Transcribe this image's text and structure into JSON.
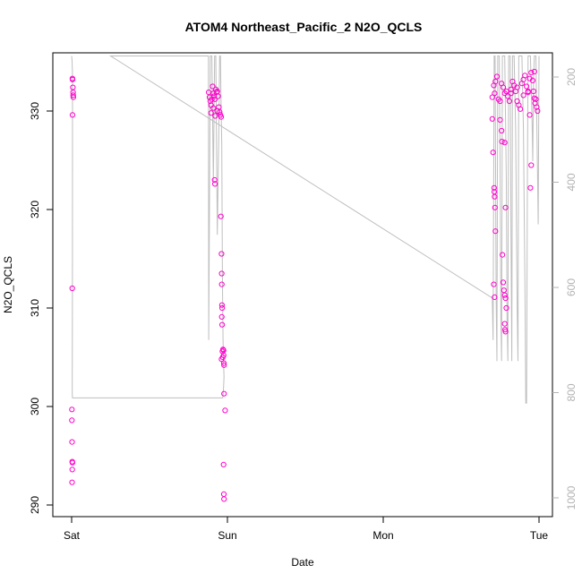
{
  "chart_data": {
    "type": "scatter",
    "title": "ATOM4 Northeast_Pacific_2 N2O_QCLS",
    "xlabel": "Date",
    "ylabel": "N2O_QCLS",
    "x_unit": "days",
    "xlim": [
      -0.05,
      3.05
    ],
    "ylim": [
      289,
      335.5
    ],
    "x_ticks": [
      {
        "value": 0,
        "label": "Sat"
      },
      {
        "value": 1,
        "label": "Sun"
      },
      {
        "value": 2,
        "label": "Mon"
      },
      {
        "value": 3,
        "label": "Tue"
      }
    ],
    "y_ticks": [
      290,
      300,
      310,
      320,
      330
    ],
    "y2_ticks": [
      200,
      400,
      600,
      800,
      1000
    ],
    "y2lim_reversed": [
      160,
      1015
    ],
    "point_color": "#ff00cc",
    "line_color": "#bfbfbf",
    "right_axis_color": "#b3b3b3",
    "series": [
      {
        "kind": "points",
        "points": [
          [
            0.005,
            333.3
          ],
          [
            0.006,
            333.2
          ],
          [
            0.008,
            332.4
          ],
          [
            0.009,
            331.9
          ],
          [
            0.01,
            331.6
          ],
          [
            0.011,
            331.4
          ],
          [
            0.006,
            329.6
          ],
          [
            0.004,
            312.0
          ],
          [
            0.002,
            299.7
          ],
          [
            0.002,
            298.6
          ],
          [
            0.003,
            296.4
          ],
          [
            0.004,
            294.4
          ],
          [
            0.005,
            294.3
          ],
          [
            0.004,
            293.6
          ],
          [
            0.003,
            292.3
          ],
          [
            0.88,
            331.9
          ],
          [
            0.885,
            331.4
          ],
          [
            0.89,
            331.0
          ],
          [
            0.895,
            330.6
          ],
          [
            0.9,
            331.2
          ],
          [
            0.905,
            332.5
          ],
          [
            0.91,
            331.8
          ],
          [
            0.915,
            331.5
          ],
          [
            0.92,
            331.2
          ],
          [
            0.925,
            332.2
          ],
          [
            0.93,
            331.9
          ],
          [
            0.935,
            332.0
          ],
          [
            0.94,
            331.5
          ],
          [
            0.945,
            330.4
          ],
          [
            0.95,
            329.9
          ],
          [
            0.955,
            329.6
          ],
          [
            0.96,
            329.4
          ],
          [
            0.935,
            330.0
          ],
          [
            0.895,
            329.8
          ],
          [
            0.91,
            330.3
          ],
          [
            0.922,
            329.5
          ],
          [
            0.918,
            323.0
          ],
          [
            0.92,
            322.6
          ],
          [
            0.958,
            319.3
          ],
          [
            0.962,
            315.5
          ],
          [
            0.963,
            313.5
          ],
          [
            0.964,
            312.4
          ],
          [
            0.965,
            310.3
          ],
          [
            0.966,
            310.0
          ],
          [
            0.964,
            309.1
          ],
          [
            0.966,
            308.3
          ],
          [
            0.968,
            305.6
          ],
          [
            0.97,
            305.0
          ],
          [
            0.972,
            305.8
          ],
          [
            0.975,
            305.7
          ],
          [
            0.976,
            305.2
          ],
          [
            0.977,
            304.4
          ],
          [
            0.978,
            304.2
          ],
          [
            0.962,
            304.8
          ],
          [
            0.978,
            301.3
          ],
          [
            0.985,
            299.6
          ],
          [
            0.975,
            294.1
          ],
          [
            0.977,
            291.1
          ],
          [
            0.978,
            290.6
          ],
          [
            2.7,
            331.4
          ],
          [
            2.71,
            332.6
          ],
          [
            2.715,
            331.8
          ],
          [
            2.72,
            333.0
          ],
          [
            2.73,
            333.5
          ],
          [
            2.74,
            331.2
          ],
          [
            2.75,
            331.0
          ],
          [
            2.76,
            332.8
          ],
          [
            2.77,
            332.4
          ],
          [
            2.78,
            331.8
          ],
          [
            2.79,
            332.0
          ],
          [
            2.8,
            331.5
          ],
          [
            2.81,
            331.0
          ],
          [
            2.82,
            332.2
          ],
          [
            2.83,
            333.0
          ],
          [
            2.84,
            332.6
          ],
          [
            2.85,
            332.0
          ],
          [
            2.86,
            331.0
          ],
          [
            2.87,
            330.6
          ],
          [
            2.88,
            330.2
          ],
          [
            2.89,
            332.8
          ],
          [
            2.9,
            333.2
          ],
          [
            2.91,
            333.6
          ],
          [
            2.92,
            332.5
          ],
          [
            2.93,
            332.0
          ],
          [
            2.94,
            333.3
          ],
          [
            2.95,
            333.9
          ],
          [
            2.96,
            333.1
          ],
          [
            2.965,
            332.0
          ],
          [
            2.97,
            331.3
          ],
          [
            2.975,
            330.8
          ],
          [
            2.98,
            331.2
          ],
          [
            2.985,
            330.4
          ],
          [
            2.99,
            330.0
          ],
          [
            2.82,
            331.8
          ],
          [
            2.86,
            332.4
          ],
          [
            2.9,
            331.6
          ],
          [
            2.93,
            331.9
          ],
          [
            2.97,
            334.0
          ],
          [
            2.94,
            329.6
          ],
          [
            2.7,
            329.2
          ],
          [
            2.705,
            325.8
          ],
          [
            2.712,
            322.2
          ],
          [
            2.713,
            321.8
          ],
          [
            2.715,
            321.3
          ],
          [
            2.717,
            320.2
          ],
          [
            2.72,
            317.8
          ],
          [
            2.71,
            312.4
          ],
          [
            2.715,
            311.1
          ],
          [
            2.75,
            329.1
          ],
          [
            2.76,
            328.0
          ],
          [
            2.762,
            326.9
          ],
          [
            2.78,
            326.8
          ],
          [
            2.785,
            320.2
          ],
          [
            2.765,
            315.4
          ],
          [
            2.77,
            312.6
          ],
          [
            2.775,
            311.8
          ],
          [
            2.78,
            311.3
          ],
          [
            2.785,
            311.0
          ],
          [
            2.79,
            310.0
          ],
          [
            2.78,
            308.4
          ],
          [
            2.782,
            307.8
          ],
          [
            2.785,
            307.6
          ],
          [
            2.95,
            324.5
          ],
          [
            2.945,
            322.2
          ]
        ]
      },
      {
        "kind": "line",
        "name": "",
        "points": [
          [
            0.0,
            160
          ],
          [
            0.003,
            170
          ],
          [
            0.005,
            190
          ],
          [
            0.006,
            260
          ],
          [
            0.005,
            600
          ],
          [
            0.004,
            800
          ],
          [
            0.005,
            810
          ],
          [
            0.97,
            810
          ],
          [
            0.975,
            790
          ],
          [
            0.978,
            770
          ],
          [
            0.976,
            750
          ],
          [
            0.972,
            700
          ],
          [
            0.968,
            580
          ],
          [
            0.964,
            330
          ],
          [
            0.958,
            230
          ],
          [
            0.955,
            160
          ],
          [
            0.95,
            160
          ],
          [
            0.945,
            300
          ],
          [
            0.935,
            500
          ],
          [
            0.925,
            160
          ],
          [
            0.918,
            160
          ],
          [
            0.91,
            400
          ],
          [
            0.9,
            160
          ],
          [
            0.89,
            160
          ],
          [
            0.88,
            700
          ],
          [
            0.878,
            160
          ],
          [
            0.25,
            160
          ],
          [
            2.7,
            620
          ],
          [
            2.705,
            700
          ],
          [
            2.712,
            160
          ],
          [
            2.718,
            160
          ],
          [
            2.72,
            300
          ],
          [
            2.725,
            620
          ],
          [
            2.73,
            740
          ],
          [
            2.735,
            160
          ],
          [
            2.745,
            160
          ],
          [
            2.75,
            360
          ],
          [
            2.755,
            660
          ],
          [
            2.76,
            740
          ],
          [
            2.765,
            160
          ],
          [
            2.78,
            160
          ],
          [
            2.79,
            400
          ],
          [
            2.795,
            660
          ],
          [
            2.8,
            740
          ],
          [
            2.805,
            160
          ],
          [
            2.815,
            160
          ],
          [
            2.82,
            500
          ],
          [
            2.825,
            740
          ],
          [
            2.83,
            160
          ],
          [
            2.84,
            160
          ],
          [
            2.85,
            300
          ],
          [
            2.86,
            640
          ],
          [
            2.865,
            740
          ],
          [
            2.87,
            160
          ],
          [
            2.89,
            160
          ],
          [
            2.9,
            300
          ],
          [
            2.91,
            600
          ],
          [
            2.915,
            820
          ],
          [
            2.92,
            820
          ],
          [
            2.925,
            400
          ],
          [
            2.93,
            160
          ],
          [
            2.945,
            160
          ],
          [
            2.955,
            280
          ],
          [
            2.96,
            360
          ],
          [
            2.965,
            200
          ],
          [
            2.97,
            160
          ],
          [
            2.98,
            160
          ],
          [
            2.99,
            380
          ],
          [
            2.995,
            480
          ],
          [
            3.0,
            160
          ]
        ]
      }
    ]
  }
}
